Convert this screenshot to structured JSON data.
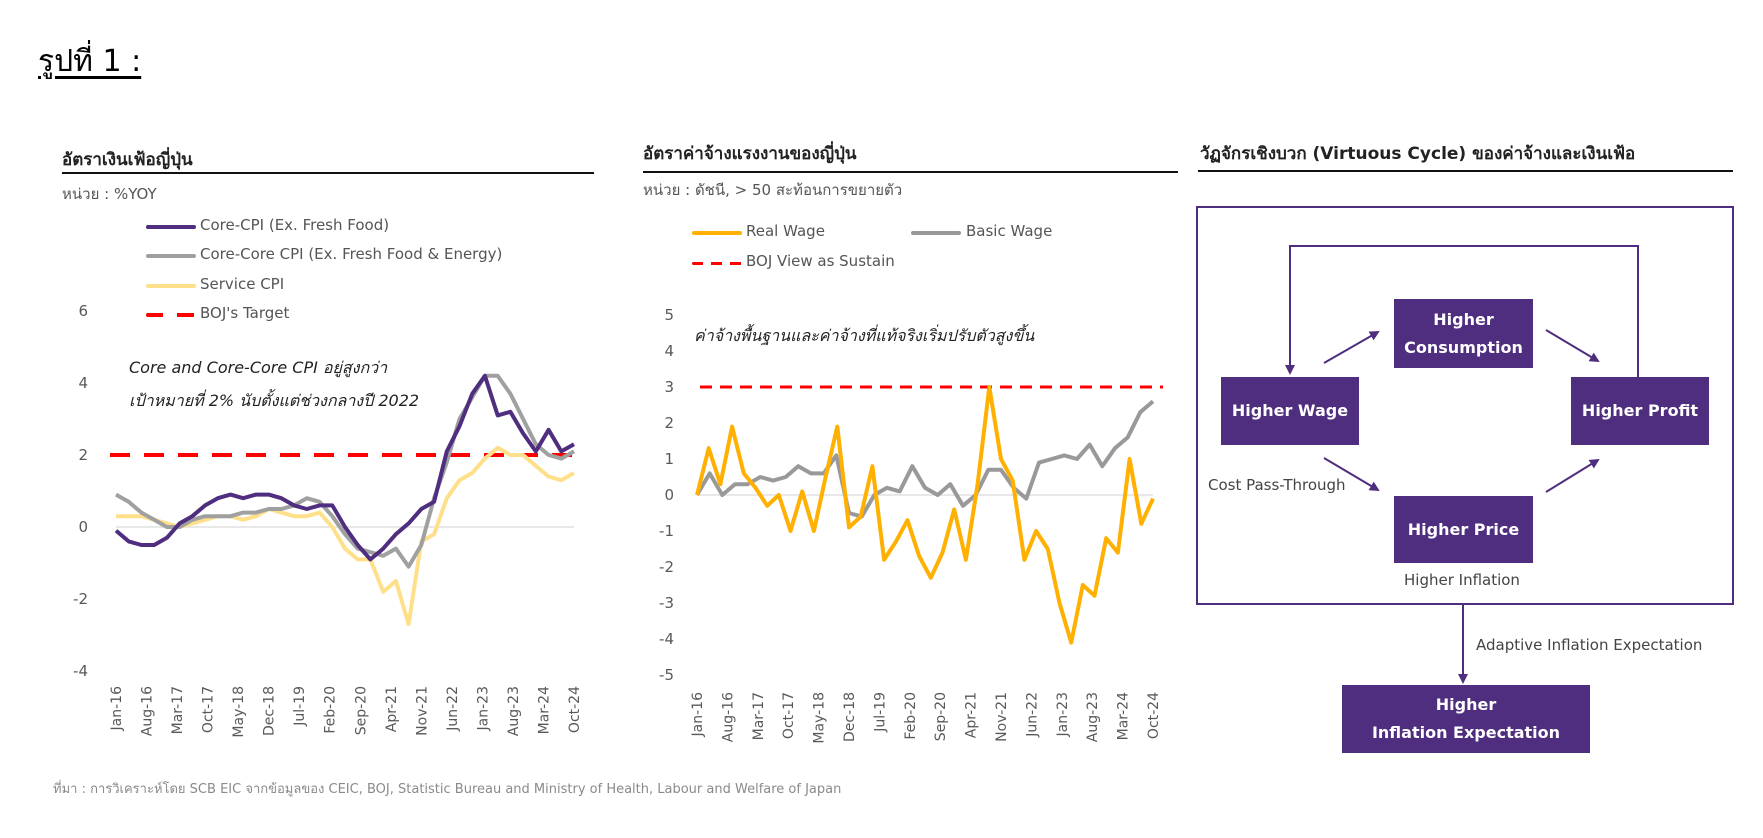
{
  "figure_title": "รูปที่ 1 :",
  "footer": "ที่มา : การวิเคราะห์โดย SCB EIC จากข้อมูลของ CEIC, BOJ, Statistic Bureau and Ministry of Health, Labour and Welfare of Japan",
  "chart_data": [
    {
      "type": "line",
      "title": "อัตราเงินเฟ้อญี่ปุ่น",
      "unit": "หน่วย : %YOY",
      "annotation": [
        "Core and Core-Core CPI อยู่สูงกว่า",
        "เป้าหมายที่ 2% นับตั้งแต่ช่วงกลางปี 2022"
      ],
      "x_range": [
        "Jan-16",
        "Oct-24"
      ],
      "x_ticks": [
        "Jan-16",
        "Aug-16",
        "Mar-17",
        "Oct-17",
        "May-18",
        "Dec-18",
        "Jul-19",
        "Feb-20",
        "Sep-20",
        "Apr-21",
        "Nov-21",
        "Jun-22",
        "Jan-23",
        "Aug-23",
        "Mar-24",
        "Oct-24"
      ],
      "y_ticks": [
        -4,
        -2,
        0,
        2,
        4,
        6
      ],
      "ylim": [
        -4,
        6
      ],
      "legend": "top-left",
      "series": [
        {
          "name": "Core-CPI (Ex. Fresh Food)",
          "color": "#4F2D7F",
          "style": "solid",
          "values": [
            -0.1,
            -0.4,
            -0.5,
            -0.5,
            -0.3,
            0.1,
            0.3,
            0.6,
            0.8,
            0.9,
            0.8,
            0.9,
            0.9,
            0.8,
            0.6,
            0.5,
            0.6,
            0.6,
            0.0,
            -0.5,
            -0.9,
            -0.6,
            -0.2,
            0.1,
            0.5,
            0.7,
            2.1,
            2.8,
            3.7,
            4.2,
            3.1,
            3.2,
            2.6,
            2.1,
            2.7,
            2.1,
            2.3
          ]
        },
        {
          "name": "Core-Core CPI (Ex. Fresh Food & Energy)",
          "color": "#A0A0A0",
          "style": "solid",
          "values": [
            0.9,
            0.7,
            0.4,
            0.2,
            0.0,
            0.0,
            0.2,
            0.3,
            0.3,
            0.3,
            0.4,
            0.4,
            0.5,
            0.5,
            0.6,
            0.8,
            0.7,
            0.3,
            -0.2,
            -0.6,
            -0.7,
            -0.8,
            -0.6,
            -1.1,
            -0.5,
            0.8,
            1.8,
            3.0,
            3.6,
            4.2,
            4.2,
            3.7,
            3.0,
            2.3,
            2.0,
            1.9,
            2.1
          ]
        },
        {
          "name": "Service CPI",
          "color": "#FFE08A",
          "style": "solid",
          "values": [
            0.3,
            0.3,
            0.3,
            0.2,
            0.1,
            0.0,
            0.1,
            0.2,
            0.3,
            0.3,
            0.2,
            0.3,
            0.5,
            0.4,
            0.3,
            0.3,
            0.4,
            0.0,
            -0.6,
            -0.9,
            -0.9,
            -1.8,
            -1.5,
            -2.7,
            -0.4,
            -0.2,
            0.8,
            1.3,
            1.5,
            1.9,
            2.2,
            2.0,
            2.0,
            1.7,
            1.4,
            1.3,
            1.5
          ]
        },
        {
          "name": "BOJ's Target",
          "color": "#FF0000",
          "style": "dashed",
          "values": [
            2,
            2
          ]
        }
      ]
    },
    {
      "type": "line",
      "title": "อัตราค่าจ้างแรงงานของญี่ปุ่น",
      "unit": "หน่วย : ดัชนี, > 50 สะท้อนการขยายตัว",
      "annotation": [
        "ค่าจ้างพื้นฐานและค่าจ้างที่แท้จริงเริ่มปรับตัวสูงขึ้น"
      ],
      "x_range": [
        "Jan-16",
        "Oct-24"
      ],
      "x_ticks": [
        "Jan-16",
        "Aug-16",
        "Mar-17",
        "Oct-17",
        "May-18",
        "Dec-18",
        "Jul-19",
        "Feb-20",
        "Sep-20",
        "Apr-21",
        "Nov-21",
        "Jun-22",
        "Jan-23",
        "Aug-23",
        "Mar-24",
        "Oct-24"
      ],
      "y_ticks": [
        -5,
        -4,
        -3,
        -2,
        -1,
        0,
        1,
        2,
        3,
        4,
        5
      ],
      "ylim": [
        -5,
        5
      ],
      "legend": "top",
      "series": [
        {
          "name": "Real Wage",
          "color": "#FFB000",
          "style": "solid",
          "values": [
            0,
            1.3,
            0.3,
            1.9,
            0.6,
            0.2,
            -0.3,
            0.0,
            -1.0,
            0.1,
            -1.0,
            0.5,
            1.9,
            -0.9,
            -0.6,
            0.8,
            -1.8,
            -1.3,
            -0.7,
            -1.7,
            -2.3,
            -1.6,
            -0.4,
            -1.8,
            0.3,
            3.0,
            1.0,
            0.4,
            -1.8,
            -1.0,
            -1.5,
            -3.0,
            -4.1,
            -2.5,
            -2.8,
            -1.2,
            -1.6,
            1.0,
            -0.8,
            -0.1
          ]
        },
        {
          "name": "Basic Wage",
          "color": "#999999",
          "style": "solid",
          "values": [
            0,
            0.6,
            0.0,
            0.3,
            0.3,
            0.5,
            0.4,
            0.5,
            0.8,
            0.6,
            0.6,
            1.1,
            -0.5,
            -0.6,
            0.0,
            0.2,
            0.1,
            0.8,
            0.2,
            0.0,
            0.3,
            -0.3,
            0.0,
            0.7,
            0.7,
            0.2,
            -0.1,
            0.9,
            1.0,
            1.1,
            1.0,
            1.4,
            0.8,
            1.3,
            1.6,
            2.3,
            2.6
          ]
        },
        {
          "name": "BOJ View as Sustain",
          "color": "#FF0000",
          "style": "dashed",
          "values": [
            3,
            3
          ]
        }
      ]
    }
  ],
  "diagram": {
    "title": "วัฏจักรเชิงบวก (Virtuous Cycle) ของค่าจ้างและเงินเฟ้อ",
    "accent": "#4F2D7F",
    "nodes": {
      "wage": "Higher Wage",
      "consumption": [
        "Higher",
        "Consumption"
      ],
      "profit": "Higher Profit",
      "price": "Higher Price",
      "expectation": [
        "Higher",
        "Inflation Expectation"
      ]
    },
    "labels": {
      "cost_pass_through": "Cost Pass-Through",
      "higher_inflation": "Higher Inflation",
      "adaptive": "Adaptive Inflation Expectation"
    }
  }
}
